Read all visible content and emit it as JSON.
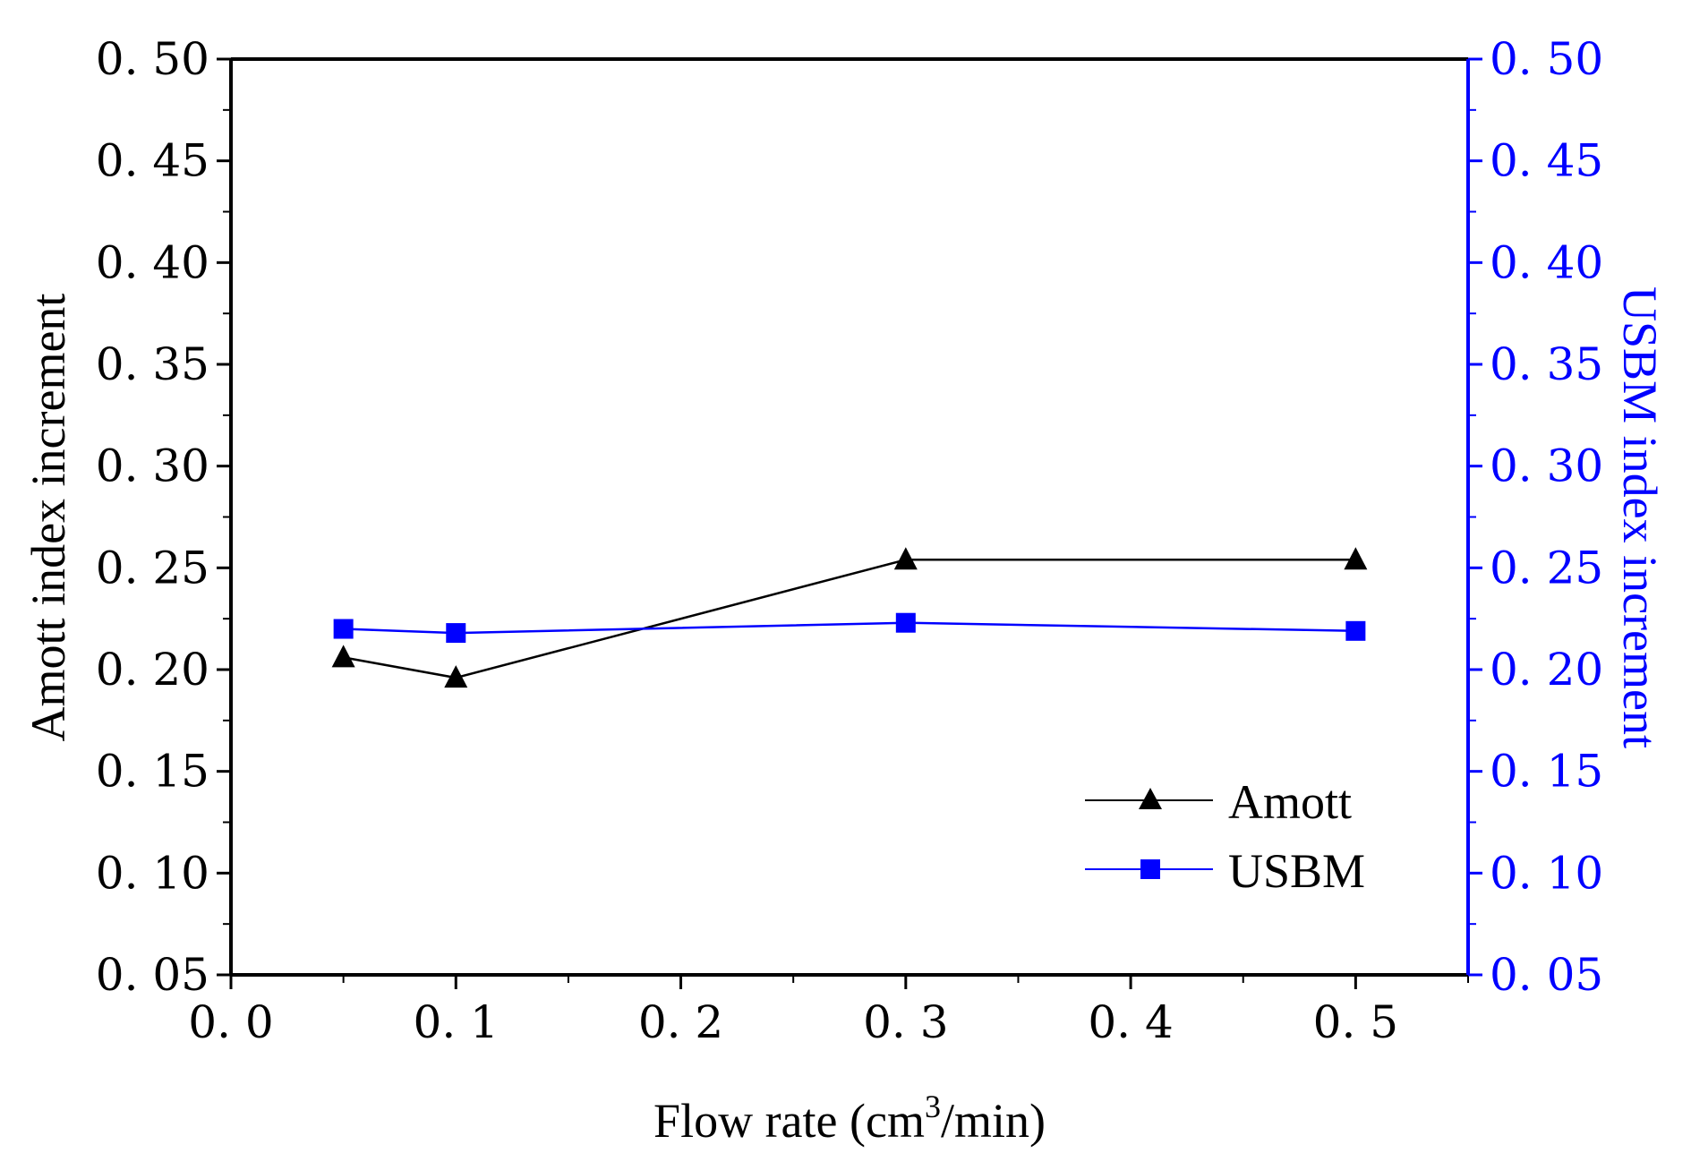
{
  "chart_data": {
    "type": "line",
    "x": [
      0.05,
      0.1,
      0.3,
      0.5
    ],
    "xlim": [
      0.0,
      0.55
    ],
    "x_ticks": [
      "0. 0",
      "0. 1",
      "0. 2",
      "0. 3",
      "0. 4",
      "0. 5"
    ],
    "x_tick_values": [
      0.0,
      0.1,
      0.2,
      0.3,
      0.4,
      0.5
    ],
    "xlabel_main": "Flow rate (cm",
    "xlabel_sup": "3",
    "xlabel_tail": "/min)",
    "ylim": [
      0.05,
      0.5
    ],
    "y_ticks_left": [
      "0. 05",
      "0. 10",
      "0. 15",
      "0. 20",
      "0. 25",
      "0. 30",
      "0. 35",
      "0. 40",
      "0. 45",
      "0. 50"
    ],
    "y_ticks_right": [
      "0. 05",
      "0. 10",
      "0. 15",
      "0. 20",
      "0. 25",
      "0. 30",
      "0. 35",
      "0. 40",
      "0. 45",
      "0. 50"
    ],
    "y_tick_values": [
      0.05,
      0.1,
      0.15,
      0.2,
      0.25,
      0.3,
      0.35,
      0.4,
      0.45,
      0.5
    ],
    "ylabel_left": "Amott index increment",
    "ylabel_right": "USBM index increment",
    "series": [
      {
        "name": "Amott",
        "values": [
          0.206,
          0.196,
          0.254,
          0.254
        ],
        "color": "#000000",
        "marker": "triangle",
        "axis": "left"
      },
      {
        "name": "USBM",
        "values": [
          0.22,
          0.218,
          0.223,
          0.219
        ],
        "color": "#0000ff",
        "marker": "square",
        "axis": "right"
      }
    ],
    "legend_position": "bottom-right",
    "grid": false
  }
}
